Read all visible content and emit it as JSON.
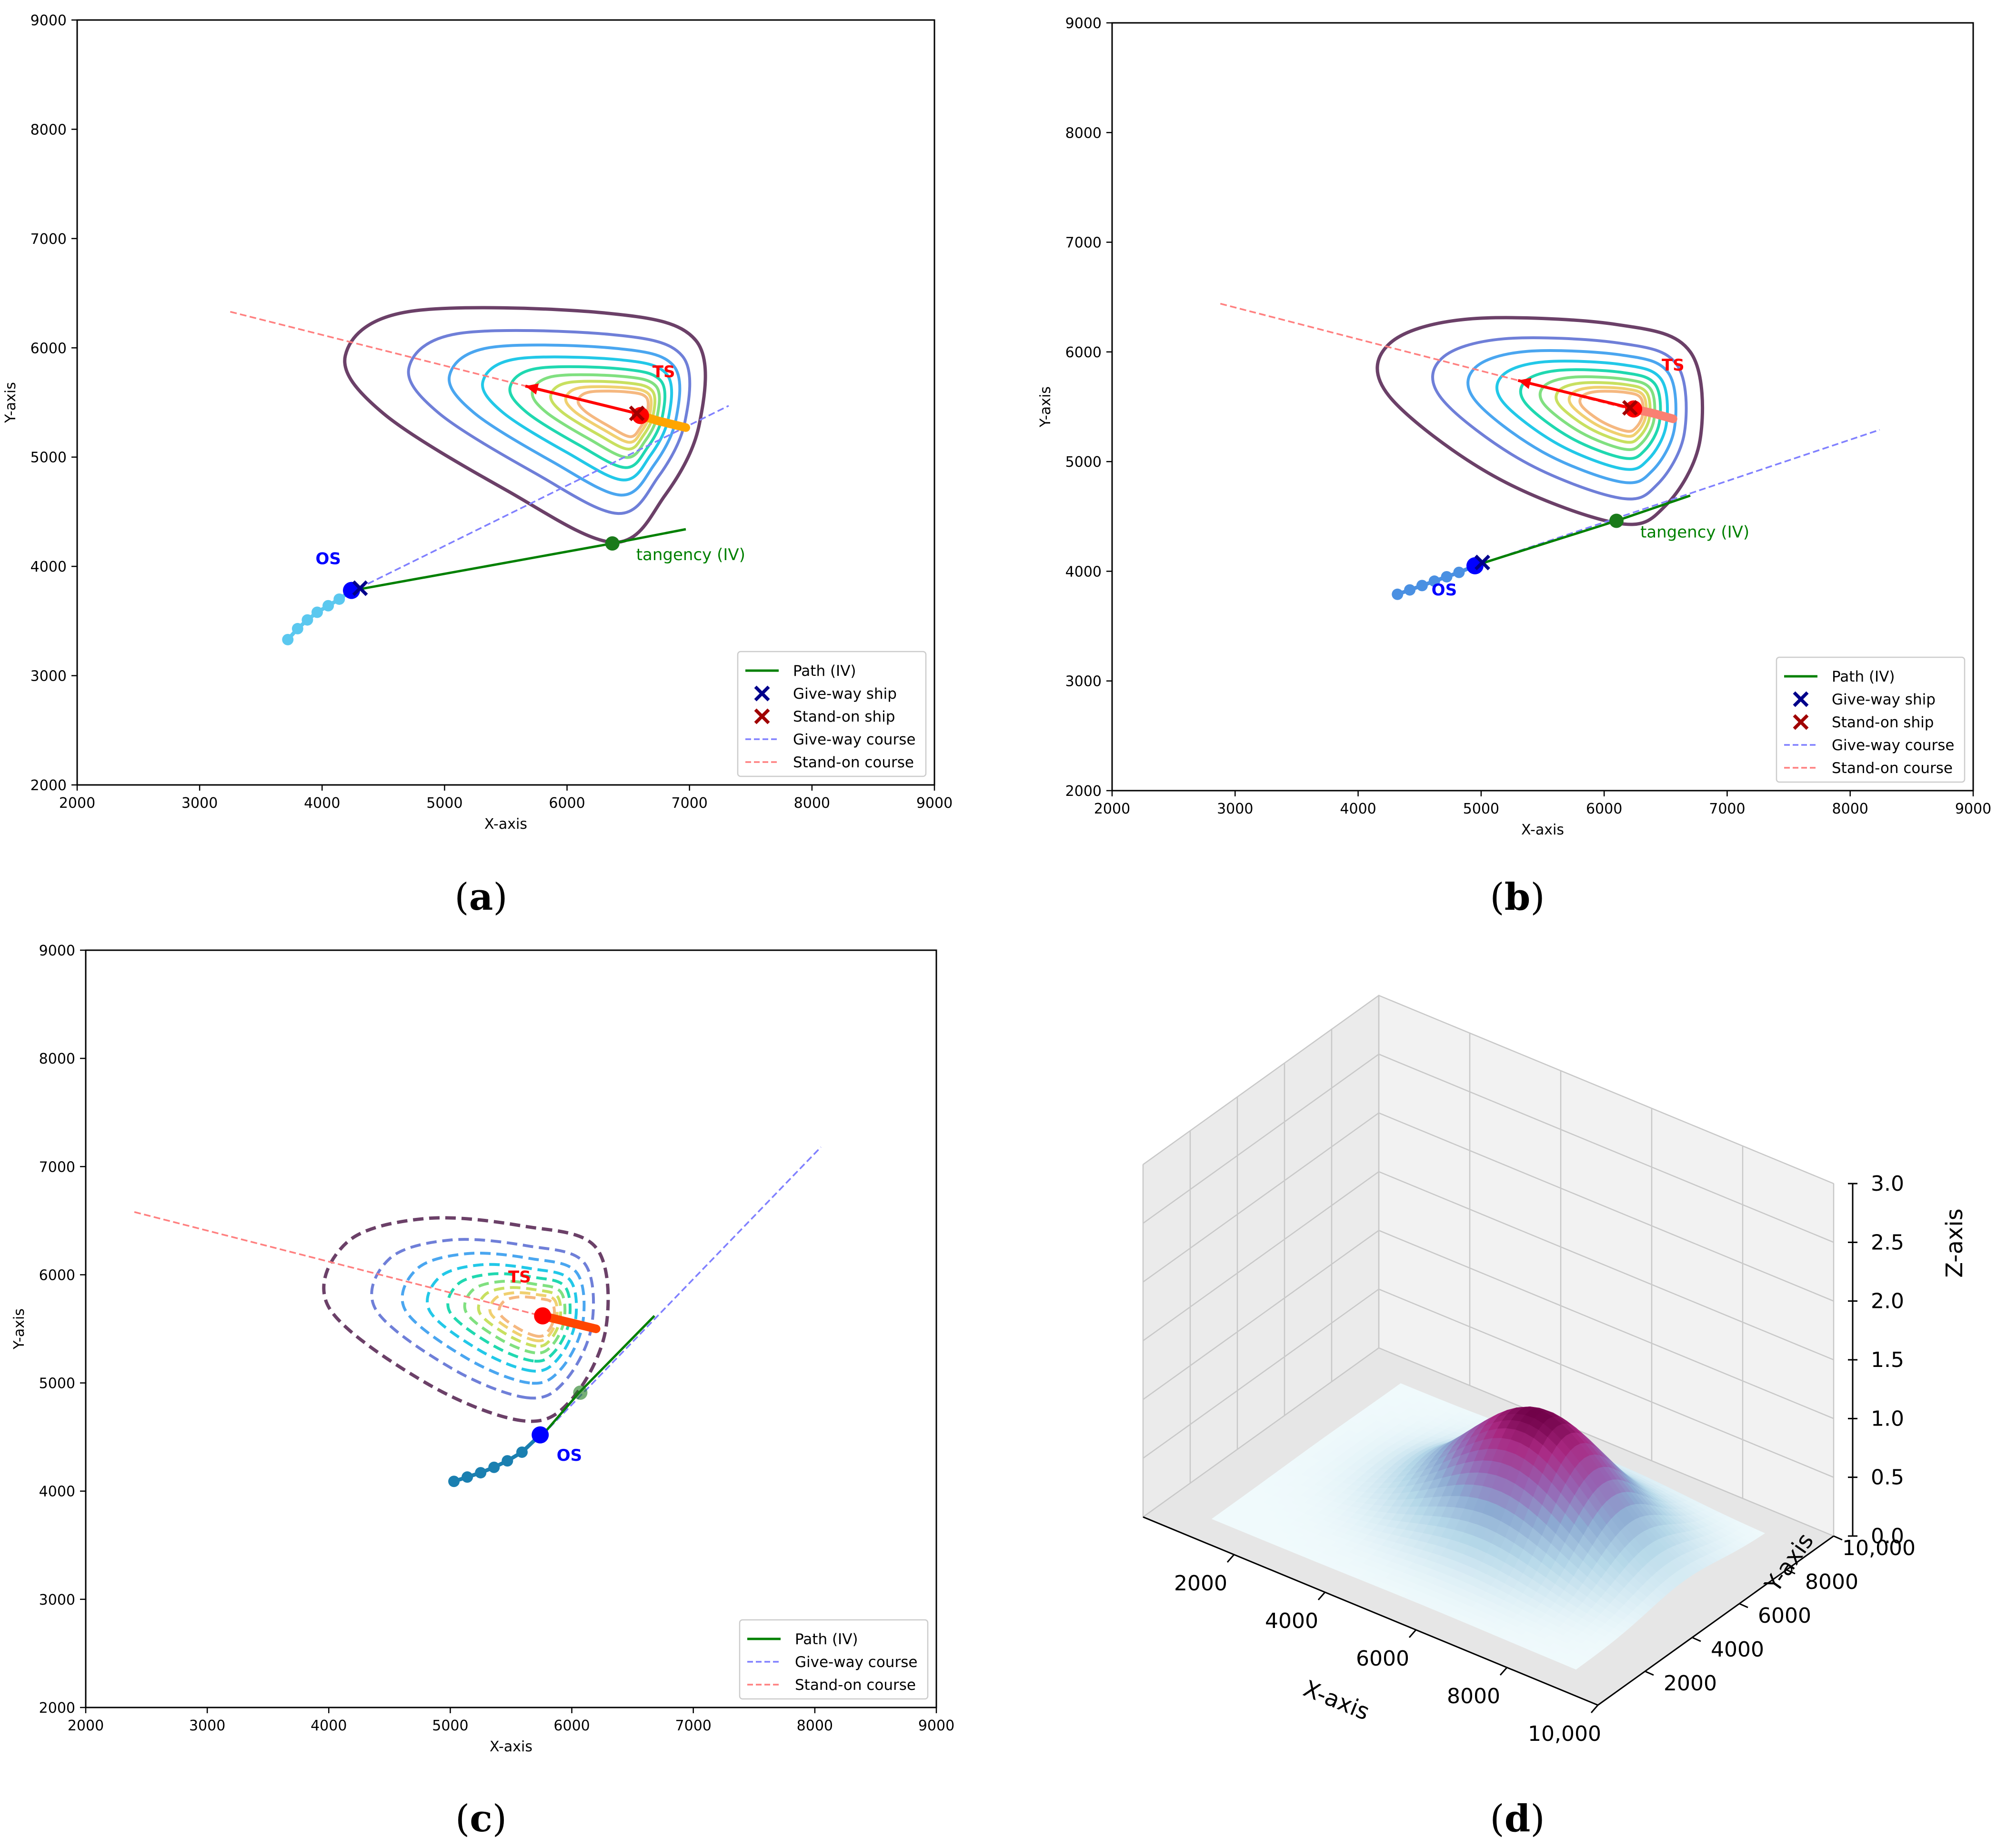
{
  "chart_data": [
    {
      "id": "a",
      "type": "contour",
      "caption": "a",
      "xlabel": "X-axis",
      "ylabel": "Y-axis",
      "xlim": [
        2000,
        9000
      ],
      "ylim": [
        2000,
        9000
      ],
      "xticks": [
        "2000",
        "3000",
        "4000",
        "5000",
        "6000",
        "7000",
        "8000",
        "9000"
      ],
      "yticks": [
        "2000",
        "3000",
        "4000",
        "5000",
        "6000",
        "7000",
        "8000",
        "9000"
      ],
      "contour_style": "solid",
      "risk_center": [
        6550,
        5420
      ],
      "contour_outer": [
        [
          6380,
          4220
        ],
        [
          5500,
          4700
        ],
        [
          4500,
          5400
        ],
        [
          4190,
          5930
        ],
        [
          4700,
          6330
        ],
        [
          6300,
          6320
        ],
        [
          7050,
          6070
        ],
        [
          7080,
          5300
        ],
        [
          6800,
          4650
        ]
      ],
      "contour_levels": 9,
      "give_way_course": [
        [
          4300,
          3800
        ],
        [
          7320,
          5470
        ]
      ],
      "stand_on_course": [
        [
          3250,
          6330
        ],
        [
          6550,
          5400
        ]
      ],
      "path": [
        [
          4300,
          3790
        ],
        [
          6370,
          4210
        ],
        [
          6970,
          4340
        ]
      ],
      "tangency_point": [
        6370,
        4210
      ],
      "tangency_label": "tangency (IV)",
      "os_position": [
        4240,
        3780
      ],
      "os_trail": [
        [
          3720,
          3330
        ],
        [
          3800,
          3430
        ],
        [
          3880,
          3510
        ],
        [
          3960,
          3580
        ],
        [
          4050,
          3640
        ],
        [
          4140,
          3700
        ],
        [
          4240,
          3780
        ]
      ],
      "os_label": "OS",
      "os_label_pos": [
        4050,
        4020
      ],
      "os_trail_color": "#5bc8ef",
      "give_way_ship": [
        4310,
        3800
      ],
      "ts_position": [
        6600,
        5380
      ],
      "ts_trail": [
        [
          6600,
          5380
        ],
        [
          6750,
          5330
        ],
        [
          6970,
          5270
        ]
      ],
      "ts_trail_color": "#ffa500",
      "ts_label": "TS",
      "ts_label_pos": [
        6790,
        5730
      ],
      "stand_on_ship": [
        6570,
        5400
      ],
      "heading_arrow": [
        [
          6570,
          5400
        ],
        [
          5660,
          5650
        ]
      ],
      "legend": [
        "Path (IV)",
        "Give-way ship",
        "Stand-on ship",
        "Give-way course",
        "Stand-on course"
      ]
    },
    {
      "id": "b",
      "type": "contour",
      "caption": "b",
      "xlabel": "X-axis",
      "ylabel": "Y-axis",
      "xlim": [
        2000,
        9000
      ],
      "ylim": [
        2000,
        9000
      ],
      "xticks": [
        "2000",
        "3000",
        "4000",
        "5000",
        "6000",
        "7000",
        "8000",
        "9000"
      ],
      "yticks": [
        "2000",
        "3000",
        "4000",
        "5000",
        "6000",
        "7000",
        "8000",
        "9000"
      ],
      "contour_style": "solid",
      "risk_center": [
        6200,
        5480
      ],
      "contour_outer": [
        [
          6100,
          4440
        ],
        [
          5100,
          4870
        ],
        [
          4250,
          5600
        ],
        [
          4250,
          6070
        ],
        [
          4900,
          6300
        ],
        [
          6100,
          6250
        ],
        [
          6700,
          6000
        ],
        [
          6780,
          5200
        ],
        [
          6500,
          4600
        ]
      ],
      "contour_levels": 9,
      "give_way_course": [
        [
          5000,
          4070
        ],
        [
          8240,
          5290
        ]
      ],
      "stand_on_course": [
        [
          2880,
          6440
        ],
        [
          6200,
          5480
        ]
      ],
      "path": [
        [
          5000,
          4070
        ],
        [
          6100,
          4460
        ],
        [
          6700,
          4690
        ]
      ],
      "tangency_point": [
        6100,
        4460
      ],
      "tangency_label": "tangency (IV)",
      "os_position": [
        4950,
        4050
      ],
      "os_trail": [
        [
          4320,
          3790
        ],
        [
          4420,
          3830
        ],
        [
          4520,
          3870
        ],
        [
          4620,
          3910
        ],
        [
          4720,
          3950
        ],
        [
          4820,
          3990
        ],
        [
          4950,
          4050
        ]
      ],
      "os_label": "OS",
      "os_label_pos": [
        4700,
        3780
      ],
      "os_trail_color": "#4a90e2",
      "give_way_ship": [
        5010,
        4080
      ],
      "ts_position": [
        6240,
        5480
      ],
      "ts_trail": [
        [
          6240,
          5480
        ],
        [
          6400,
          5440
        ],
        [
          6560,
          5390
        ]
      ],
      "ts_trail_color": "#fa8072",
      "ts_label": "TS",
      "ts_label_pos": [
        6560,
        5830
      ],
      "stand_on_ship": [
        6210,
        5490
      ],
      "heading_arrow": [
        [
          6210,
          5490
        ],
        [
          5300,
          5740
        ]
      ],
      "legend": [
        "Path (IV)",
        "Give-way ship",
        "Stand-on ship",
        "Give-way course",
        "Stand-on course"
      ]
    },
    {
      "id": "c",
      "type": "contour",
      "caption": "c",
      "xlabel": "X-axis",
      "ylabel": "Y-axis",
      "xlim": [
        2000,
        9000
      ],
      "ylim": [
        2000,
        9000
      ],
      "xticks": [
        "2000",
        "3000",
        "4000",
        "5000",
        "6000",
        "7000",
        "8000",
        "9000"
      ],
      "yticks": [
        "2000",
        "3000",
        "4000",
        "5000",
        "6000",
        "7000",
        "8000",
        "9000"
      ],
      "contour_style": "dashed",
      "risk_center": [
        5750,
        5620
      ],
      "contour_outer": [
        [
          5600,
          4650
        ],
        [
          4800,
          5000
        ],
        [
          4000,
          5700
        ],
        [
          4150,
          6300
        ],
        [
          4800,
          6520
        ],
        [
          5600,
          6450
        ],
        [
          6200,
          6250
        ],
        [
          6280,
          5500
        ],
        [
          6000,
          4850
        ]
      ],
      "contour_levels": 9,
      "give_way_course": [
        [
          5760,
          4520
        ],
        [
          8050,
          7180
        ]
      ],
      "stand_on_course": [
        [
          2400,
          6580
        ],
        [
          5750,
          5620
        ]
      ],
      "path": [
        [
          5760,
          4520
        ],
        [
          6060,
          4910
        ],
        [
          6680,
          5620
        ]
      ],
      "tangency_point": [
        6070,
        4910
      ],
      "tangency_label": "",
      "os_position": [
        5740,
        4520
      ],
      "os_trail": [
        [
          5030,
          4090
        ],
        [
          5140,
          4130
        ],
        [
          5250,
          4170
        ],
        [
          5360,
          4220
        ],
        [
          5470,
          4280
        ],
        [
          5590,
          4360
        ],
        [
          5740,
          4520
        ]
      ],
      "os_label": "OS",
      "os_label_pos": [
        5980,
        4280
      ],
      "os_trail_color": "#1a7fb0",
      "give_way_ship": null,
      "ts_position": [
        5760,
        5620
      ],
      "ts_trail": [
        [
          5760,
          5620
        ],
        [
          5980,
          5560
        ],
        [
          6200,
          5500
        ]
      ],
      "ts_trail_color": "#ff4500",
      "ts_label": "TS",
      "ts_label_pos": [
        5570,
        5930
      ],
      "stand_on_ship": null,
      "heading_arrow": null,
      "legend": [
        "Path (IV)",
        "Give-way course",
        "Stand-on course"
      ]
    },
    {
      "id": "d",
      "type": "surface3d",
      "caption": "d",
      "xlabel": "X-axis",
      "ylabel": "Y-axis",
      "zlabel": "Z-axis",
      "xlim": [
        0,
        10000
      ],
      "ylim": [
        0,
        10000
      ],
      "zlim": [
        0,
        3.0
      ],
      "xticks": [
        "2000",
        "4000",
        "6000",
        "8000",
        "10,000"
      ],
      "yticks": [
        "2000",
        "4000",
        "6000",
        "8000",
        "10,000"
      ],
      "zticks": [
        "0.0",
        "0.5",
        "1.0",
        "1.5",
        "2.0",
        "2.5",
        "3.0"
      ],
      "peak_center": [
        5750,
        5600
      ],
      "peak_height": 1.0,
      "colormap": "BuPu"
    }
  ],
  "legend_labels": {
    "path": "Path (IV)",
    "give_way_ship": "Give-way ship",
    "stand_on_ship": "Stand-on ship",
    "give_way_course": "Give-way course",
    "stand_on_course": "Stand-on course"
  },
  "colors": {
    "path": "#008000",
    "give_way_ship": "#00008b",
    "stand_on_ship": "#a00000",
    "give_way_course": "#8080ff",
    "stand_on_course": "#ff8080",
    "os_marker": "#0000ff",
    "ts_marker": "#ff0000",
    "tangency": "#1a7a1a",
    "os_label": "#0000ff",
    "ts_label": "#ff0000",
    "tangency_label": "#008000",
    "contour_colors": [
      "#6b4068",
      "#6f7fd8",
      "#4aa6f0",
      "#22c8e8",
      "#20d8b0",
      "#80e080",
      "#c8e060",
      "#f0d070",
      "#f5b880"
    ]
  }
}
